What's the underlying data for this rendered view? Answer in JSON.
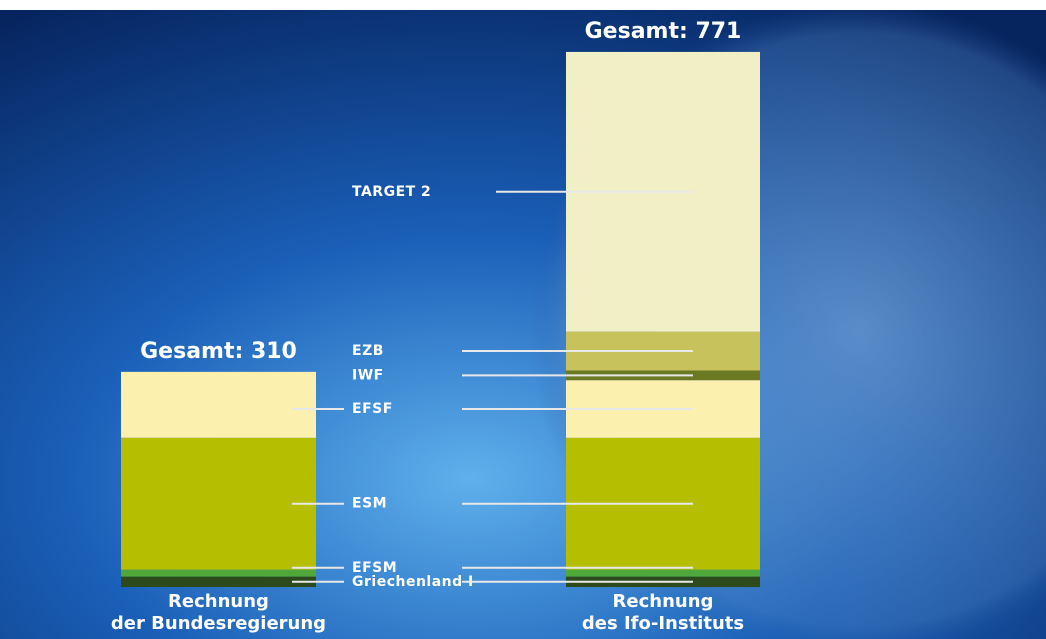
{
  "chart_data": {
    "type": "stacked_bar",
    "categories": [
      [
        "Rechnung",
        "der Bundesregierung"
      ],
      [
        "Rechnung",
        "des Ifo-Instituts"
      ]
    ],
    "total_labels": [
      "Gesamt: 310",
      "Gesamt: 771"
    ],
    "totals": [
      310,
      771
    ],
    "series": [
      {
        "name": "Griechenland I",
        "color": "#2d4a1c",
        "values": [
          15,
          15
        ]
      },
      {
        "name": "EFSM",
        "color": "#4fa83a",
        "values": [
          10,
          10
        ]
      },
      {
        "name": "ESM",
        "color": "#b5bf00",
        "values": [
          190,
          190
        ]
      },
      {
        "name": "EFSF",
        "color": "#fbf0ae",
        "values": [
          95,
          83
        ]
      },
      {
        "name": "IWF",
        "color": "#6b7a22",
        "values": [
          null,
          14
        ]
      },
      {
        "name": "EZB",
        "color": "#c7c25c",
        "values": [
          null,
          56
        ]
      },
      {
        "name": "TARGET 2",
        "color": "#f1efc6",
        "values": [
          null,
          403
        ]
      }
    ]
  }
}
